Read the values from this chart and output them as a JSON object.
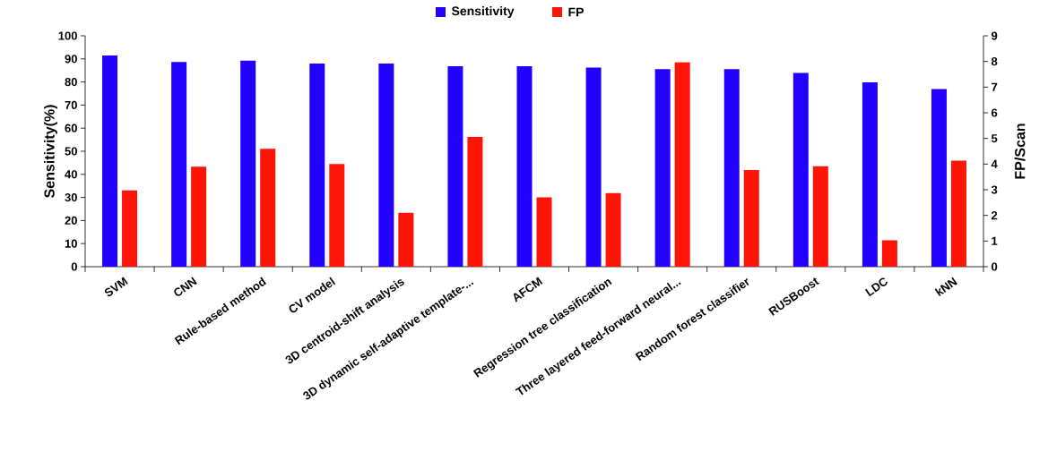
{
  "chart_data": {
    "type": "bar",
    "categories": [
      "SVM",
      "CNN",
      "Rule-based method",
      "CV model",
      "3D centroid-shift analysis",
      "3D dynamic self-adaptive template-...",
      "AFCM",
      "Regression tree classification",
      "Three layered feed-forward neural...",
      "Random forest classifier",
      "RUSBoost",
      "LDC",
      "kNN"
    ],
    "series": [
      {
        "name": "Sensitivity",
        "color": "#2200ff",
        "values": [
          91.5,
          88.7,
          89.2,
          88.0,
          88.0,
          86.8,
          86.8,
          86.2,
          85.6,
          85.6,
          83.9,
          79.8,
          76.9
        ]
      },
      {
        "name": "FP",
        "color": "#ff1408",
        "axis": "y2",
        "values": [
          2.97,
          3.9,
          4.6,
          4.0,
          2.1,
          5.06,
          2.7,
          2.87,
          7.97,
          3.77,
          3.92,
          1.03,
          4.13
        ]
      }
    ],
    "ylabel": "Sensitivity(%)",
    "y2label": "FP/Scan",
    "ylim": [
      0,
      100
    ],
    "yticks": [
      0,
      10,
      20,
      30,
      40,
      50,
      60,
      70,
      80,
      90,
      100
    ],
    "y2lim": [
      0,
      9
    ],
    "y2ticks": [
      0,
      1,
      2,
      3,
      4,
      5,
      6,
      7,
      8,
      9
    ],
    "legend": "top",
    "grid": false
  }
}
